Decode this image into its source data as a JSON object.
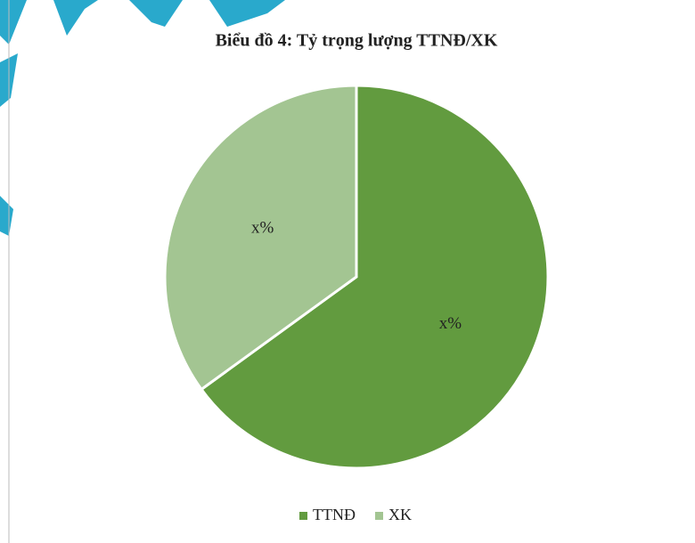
{
  "chart_data": {
    "type": "pie",
    "title": "Biểu đồ 4: Tỷ trọng lượng TTNĐ/XK",
    "categories": [
      "TTNĐ",
      "XK"
    ],
    "values": [
      65,
      35
    ],
    "value_labels": [
      "x%",
      "x%"
    ],
    "colors": [
      "#629b3f",
      "#a3c592"
    ],
    "legend": "bottom"
  }
}
